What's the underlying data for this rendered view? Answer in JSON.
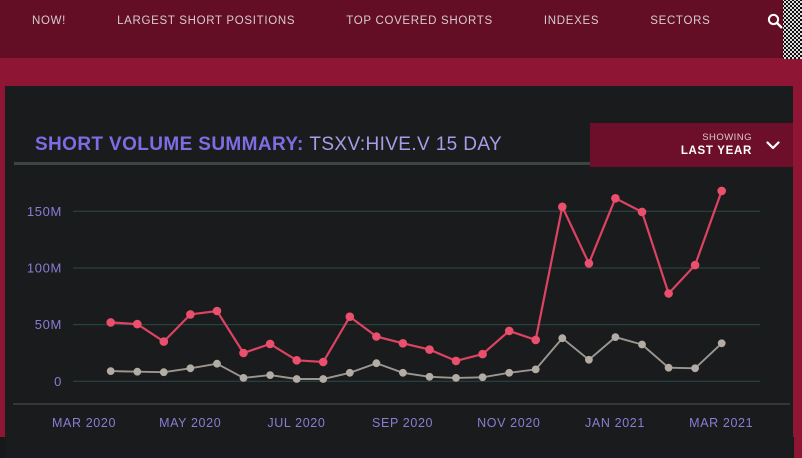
{
  "nav": {
    "items": [
      {
        "label": "NOW!"
      },
      {
        "label": "LARGEST SHORT POSITIONS"
      },
      {
        "label": "TOP COVERED SHORTS"
      },
      {
        "label": "INDEXES"
      },
      {
        "label": "SECTORS"
      }
    ]
  },
  "header": {
    "title": "SHORT VOLUME SUMMARY:",
    "ticker": "TSXV:HIVE.V 15 DAY"
  },
  "dropdown": {
    "showing_label": "SHOWING",
    "value": "LAST YEAR"
  },
  "chart_data": {
    "type": "line",
    "title": "SHORT VOLUME SUMMARY: TSXV:HIVE.V 15 DAY",
    "xlabel": "",
    "ylabel": "",
    "unit": "shares (millions)",
    "ylim": [
      0,
      175
    ],
    "grid": true,
    "legend_position": "none",
    "x_tick_labels": [
      "MAR 2020",
      "MAY 2020",
      "JUL 2020",
      "SEP 2020",
      "NOV 2020",
      "JAN 2021",
      "MAR 2021"
    ],
    "y_ticks": [
      {
        "value": 150,
        "label": "150M"
      },
      {
        "value": 100,
        "label": "100M"
      },
      {
        "value": 50,
        "label": "50M"
      },
      {
        "value": 0,
        "label": "0"
      }
    ],
    "x_interval_days": 15,
    "series": [
      {
        "name": "short-volume-pink",
        "color": "#dc4363",
        "marker_color": "#ea4f6d",
        "values": [
          52,
          50.5,
          35,
          59,
          62,
          25,
          33,
          18.5,
          17,
          57,
          39.5,
          33.5,
          28,
          18,
          24,
          44.5,
          36.5,
          154,
          104,
          161.5,
          149.5,
          77.5,
          102.5,
          168
        ]
      },
      {
        "name": "volume-gray",
        "color": "#9d968f",
        "marker_color": "#b3aca4",
        "values": [
          9,
          8.5,
          8,
          11.5,
          15.5,
          3,
          5.5,
          2,
          2,
          7.5,
          16,
          7.5,
          4,
          3,
          3.5,
          7.5,
          10.5,
          38,
          19,
          39,
          32.5,
          12,
          11.5,
          33.5
        ]
      }
    ]
  },
  "colors": {
    "nav_background": "#640e25",
    "page_band": "#8e1534",
    "panel_background": "#1a1b1d",
    "title_accent": "#7c6de2",
    "ticker_text": "#a89ce8",
    "axis_text": "#8a7cd4",
    "gridline": "#2b4b46",
    "dropdown_background": "#6d0f2b",
    "series_pink": "#dc4363",
    "series_gray": "#9d968f"
  }
}
